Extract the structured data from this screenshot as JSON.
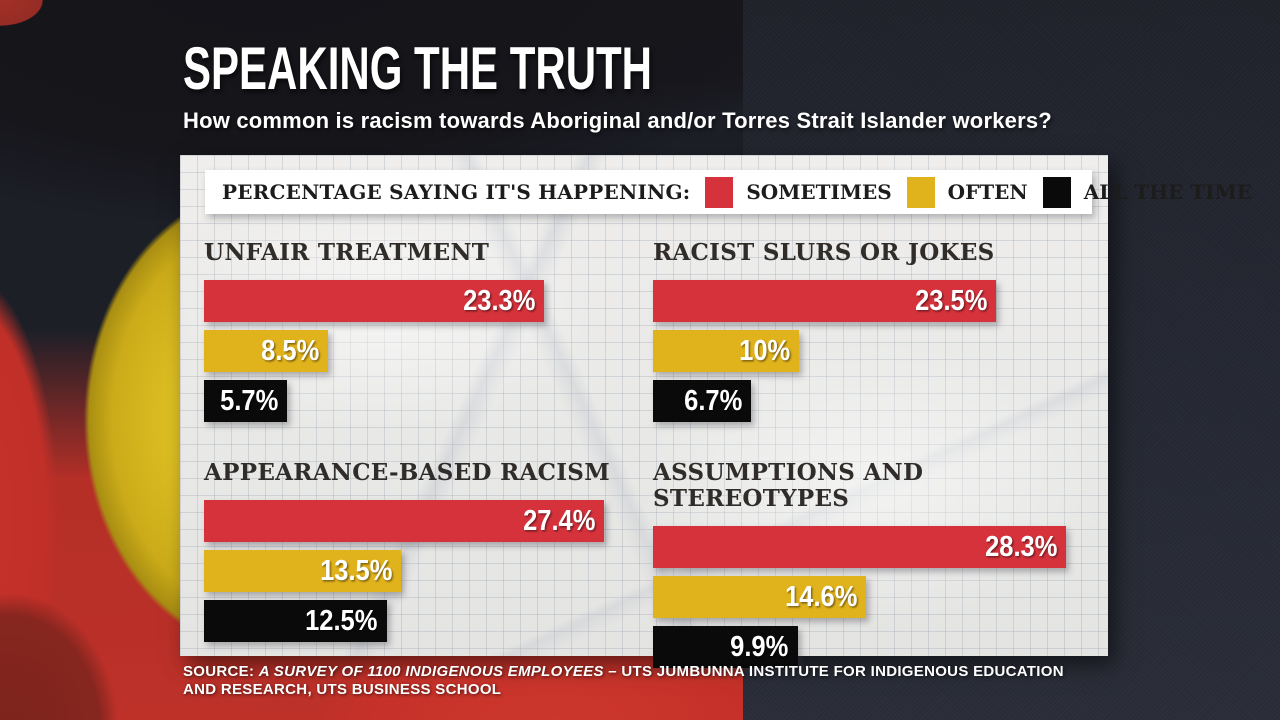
{
  "header": {
    "title": "SPEAKING THE TRUTH",
    "subtitle": "How common is racism towards Aboriginal and/or Torres Strait Islander workers?"
  },
  "legend": {
    "label": "PERCENTAGE SAYING IT'S HAPPENING:",
    "items": [
      {
        "label": "SOMETIMES",
        "color": "#d5323c"
      },
      {
        "label": "OFTEN",
        "color": "#e0b21b"
      },
      {
        "label": "ALL THE TIME",
        "color": "#0a0a0a"
      }
    ]
  },
  "chart_data": {
    "type": "bar",
    "orientation": "horizontal",
    "unit": "percent",
    "title": "SPEAKING THE TRUTH",
    "subtitle": "How common is racism towards Aboriginal and/or Torres Strait Islander workers?",
    "legend_position": "top",
    "grid": true,
    "xlim": [
      0,
      30.7
    ],
    "categories": [
      "UNFAIR TREATMENT",
      "RACIST SLURS OR JOKES",
      "APPEARANCE-BASED RACISM",
      "ASSUMPTIONS AND STEREOTYPES"
    ],
    "series": [
      {
        "name": "SOMETIMES",
        "color": "#d5323c",
        "values": [
          23.3,
          23.5,
          27.4,
          28.3
        ]
      },
      {
        "name": "OFTEN",
        "color": "#e0b21b",
        "values": [
          8.5,
          10,
          13.5,
          14.6
        ]
      },
      {
        "name": "ALL THE TIME",
        "color": "#0a0a0a",
        "values": [
          5.7,
          6.7,
          12.5,
          9.9
        ]
      }
    ],
    "value_labels": [
      [
        "23.3%",
        "8.5%",
        "5.7%"
      ],
      [
        "23.5%",
        "10%",
        "6.7%"
      ],
      [
        "27.4%",
        "13.5%",
        "12.5%"
      ],
      [
        "28.3%",
        "14.6%",
        "9.9%"
      ]
    ]
  },
  "source": {
    "prefix": "SOURCE: ",
    "italic": "A SURVEY OF 1100 INDIGENOUS EMPLOYEES",
    "rest": " – UTS JUMBUNNA INSTITUTE FOR INDIGENOUS EDUCATION AND RESEARCH, UTS BUSINESS SCHOOL"
  }
}
